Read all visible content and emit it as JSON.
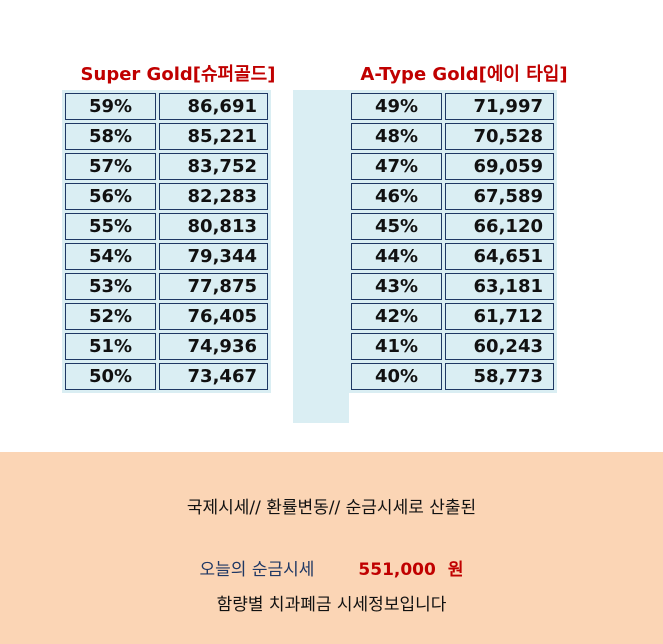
{
  "left_table": {
    "title": "Super Gold[슈퍼골드]",
    "rows": [
      {
        "pct": "59%",
        "value": "86,691"
      },
      {
        "pct": "58%",
        "value": "85,221"
      },
      {
        "pct": "57%",
        "value": "83,752"
      },
      {
        "pct": "56%",
        "value": "82,283"
      },
      {
        "pct": "55%",
        "value": "80,813"
      },
      {
        "pct": "54%",
        "value": "79,344"
      },
      {
        "pct": "53%",
        "value": "77,875"
      },
      {
        "pct": "52%",
        "value": "76,405"
      },
      {
        "pct": "51%",
        "value": "74,936"
      },
      {
        "pct": "50%",
        "value": "73,467"
      }
    ]
  },
  "right_table": {
    "title": "A-Type Gold[에이 타입]",
    "rows": [
      {
        "pct": "49%",
        "value": "71,997"
      },
      {
        "pct": "48%",
        "value": "70,528"
      },
      {
        "pct": "47%",
        "value": "69,059"
      },
      {
        "pct": "46%",
        "value": "67,589"
      },
      {
        "pct": "45%",
        "value": "66,120"
      },
      {
        "pct": "44%",
        "value": "64,651"
      },
      {
        "pct": "43%",
        "value": "63,181"
      },
      {
        "pct": "42%",
        "value": "61,712"
      },
      {
        "pct": "41%",
        "value": "60,243"
      },
      {
        "pct": "40%",
        "value": "58,773"
      }
    ]
  },
  "footer": {
    "line1": "국제시세// 환률변동// 순금시세로 산출된",
    "today_label": "오늘의 순금시세",
    "today_price": "551,000",
    "today_unit": "원",
    "line3": "함량별 치과폐금 시세정보입니다"
  },
  "colors": {
    "title": "#c00000",
    "cell_bg": "#daeef3",
    "cell_border": "#1f3864",
    "panel_bg": "#fbd5b5"
  }
}
